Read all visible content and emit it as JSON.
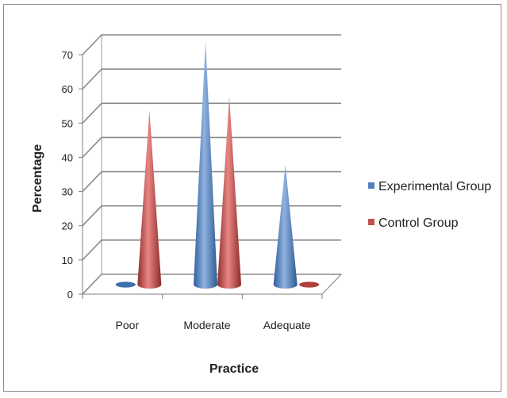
{
  "chart_data": {
    "type": "bar",
    "style": "3d-cone",
    "categories": [
      "Poor",
      "Moderate",
      "Adequate"
    ],
    "series": [
      {
        "name": "Experimental Group",
        "values": [
          0,
          68,
          32
        ],
        "color": "#4f81bd"
      },
      {
        "name": "Control Group",
        "values": [
          48,
          52,
          0
        ],
        "color": "#c0504d"
      }
    ],
    "xlabel": "Practice",
    "ylabel": "Percentage",
    "ylim": [
      0,
      70
    ],
    "yticks": [
      "0",
      "10",
      "20",
      "30",
      "40",
      "50",
      "60",
      "70"
    ],
    "grid": true,
    "legend_position": "right"
  }
}
